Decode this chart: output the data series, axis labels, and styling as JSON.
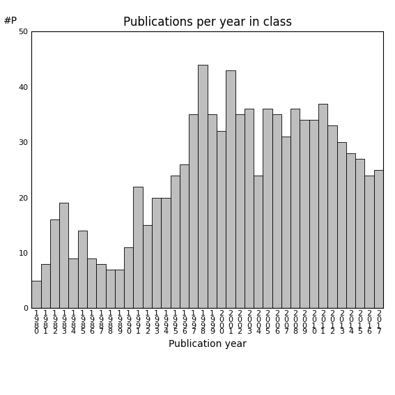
{
  "title": "Publications per year in class",
  "xlabel": "Publication year",
  "ylabel": "#P",
  "bar_color": "#bebebe",
  "bar_edgecolor": "#000000",
  "years": [
    1980,
    1981,
    1982,
    1983,
    1984,
    1985,
    1986,
    1987,
    1988,
    1989,
    1990,
    1991,
    1992,
    1993,
    1994,
    1995,
    1996,
    1997,
    1998,
    1999,
    2000,
    2001,
    2002,
    2003,
    2004,
    2005,
    2006,
    2007,
    2008,
    2009,
    2010,
    2011,
    2012,
    2013,
    2014,
    2015,
    2016,
    2017
  ],
  "values": [
    5,
    8,
    16,
    19,
    9,
    14,
    9,
    8,
    7,
    7,
    11,
    22,
    15,
    20,
    20,
    24,
    26,
    35,
    44,
    35,
    32,
    43,
    35,
    36,
    24,
    36,
    35,
    31,
    36,
    34,
    34,
    37,
    33,
    30,
    28,
    27,
    24,
    25
  ],
  "ylim": [
    0,
    50
  ],
  "yticks": [
    0,
    10,
    20,
    30,
    40,
    50
  ],
  "background_color": "#ffffff",
  "title_fontsize": 12,
  "axis_label_fontsize": 10,
  "tick_fontsize": 8
}
